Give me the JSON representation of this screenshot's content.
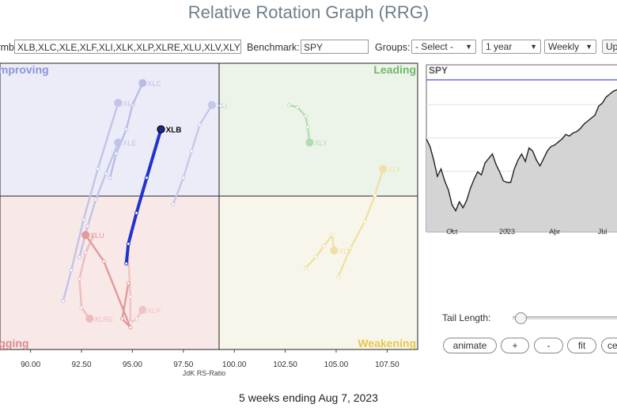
{
  "page": {
    "title": "Relative Rotation Graph (RRG)",
    "footer": "5 weeks ending Aug 7, 2023"
  },
  "toolbar": {
    "symbols_label": "Symbols:",
    "symbols_value": "XLB,XLC,XLE,XLF,XLI,XLK,XLP,XLRE,XLU,XLV,XLY",
    "benchmark_label": "Benchmark:",
    "benchmark_value": "SPY",
    "groups_label": "Groups:",
    "groups_value": "- Select -",
    "period_value": "1 year",
    "frequency_value": "Weekly",
    "update_label": "Update"
  },
  "controls": {
    "tail_length_label": "Tail Length:",
    "tail_length_value": 5,
    "buttons": [
      "animate",
      "+",
      "-",
      "fit",
      "center"
    ]
  },
  "colors": {
    "improving_bg": "#ececf8",
    "leading_bg": "#ecf4ea",
    "lagging_bg": "#f8e8e8",
    "weakening_bg": "#f8f6ea",
    "improving_text": "#8a95d6",
    "leading_text": "#72b86a",
    "lagging_text": "#e08a8a",
    "weakening_text": "#e6c84a",
    "highlight_tail": "#2233cc",
    "benchmark_line": "#4455cc"
  },
  "chart_data": [
    {
      "type": "scatter",
      "title": "",
      "xlabel": "JdK RS-Ratio",
      "ylabel": "",
      "xlim": [
        88.5,
        109
      ],
      "ylim": [
        93.4,
        106.4
      ],
      "xticks": [
        "90.00",
        "92.50",
        "95.00",
        "97.50",
        "100.00",
        "102.50",
        "105.00",
        "107.50"
      ],
      "quadrants": {
        "improving": "Improving",
        "leading": "Leading",
        "lagging": "Lagging",
        "weakening": "Weakening"
      },
      "highlighted": "XLB",
      "series": [
        {
          "name": "XLB",
          "color": "#2233cc",
          "points": [
            [
              94.7,
              97.3
            ],
            [
              94.8,
              98.2
            ],
            [
              95.2,
              99.6
            ],
            [
              95.7,
              101.2
            ],
            [
              96.4,
              103.4
            ]
          ]
        },
        {
          "name": "XLC",
          "color": "#b8bde8",
          "points": [
            [
              93.9,
              101.2
            ],
            [
              94.2,
              102.3
            ],
            [
              94.7,
              103.4
            ],
            [
              95.0,
              104.5
            ],
            [
              95.5,
              105.5
            ]
          ]
        },
        {
          "name": "XLE",
          "color": "#c0c4e8",
          "points": [
            [
              92.4,
              97.6
            ],
            [
              92.8,
              99.0
            ],
            [
              93.2,
              100.2
            ],
            [
              93.7,
              101.4
            ],
            [
              94.3,
              102.8
            ]
          ]
        },
        {
          "name": "XLF",
          "color": "#c0c4e8",
          "points": [
            [
              91.6,
              95.6
            ],
            [
              92.0,
              97.0
            ],
            [
              92.6,
              99.3
            ],
            [
              93.3,
              101.6
            ],
            [
              94.3,
              104.6
            ]
          ]
        },
        {
          "name": "XLI",
          "color": "#c4c8ea",
          "points": [
            [
              97.0,
              100.0
            ],
            [
              97.5,
              101.2
            ],
            [
              97.9,
              102.4
            ],
            [
              98.3,
              103.6
            ],
            [
              98.9,
              104.5
            ]
          ]
        },
        {
          "name": "XLK",
          "color": "#f0e0a8",
          "points": [
            [
              105.1,
              96.7
            ],
            [
              105.7,
              98.0
            ],
            [
              106.4,
              99.2
            ],
            [
              106.9,
              100.4
            ],
            [
              107.3,
              101.6
            ]
          ]
        },
        {
          "name": "XLP",
          "color": "#f0c4c4",
          "points": [
            [
              94.8,
              97.6
            ],
            [
              94.9,
              95.8
            ],
            [
              94.9,
              94.6
            ],
            [
              95.2,
              94.8
            ],
            [
              95.5,
              95.2
            ]
          ]
        },
        {
          "name": "XLRE",
          "color": "#eebcbc",
          "points": [
            [
              93.1,
              98.6
            ],
            [
              92.7,
              97.8
            ],
            [
              92.4,
              96.6
            ],
            [
              92.5,
              95.3
            ],
            [
              92.9,
              94.8
            ]
          ]
        },
        {
          "name": "XLU",
          "color": "#e29a9a",
          "points": [
            [
              94.8,
              96.4
            ],
            [
              94.5,
              94.8
            ],
            [
              94.9,
              94.4
            ],
            [
              93.6,
              97.4
            ],
            [
              92.7,
              98.6
            ]
          ]
        },
        {
          "name": "XLV",
          "color": "#f0e0a8",
          "points": [
            [
              103.5,
              97.1
            ],
            [
              104.0,
              97.6
            ],
            [
              104.4,
              98.1
            ],
            [
              104.8,
              98.6
            ],
            [
              104.9,
              97.9
            ]
          ]
        },
        {
          "name": "XLY",
          "color": "#b4dcb0",
          "points": [
            [
              102.7,
              104.5
            ],
            [
              103.1,
              104.4
            ],
            [
              103.5,
              104.0
            ],
            [
              103.6,
              103.5
            ],
            [
              103.7,
              102.8
            ]
          ]
        }
      ]
    },
    {
      "type": "area",
      "title": "",
      "series_label": "SPY",
      "xticks": [
        "Oct",
        "2023",
        "Apr",
        "Jul"
      ],
      "xtick_index": [
        7,
        22,
        35,
        48
      ],
      "y_norm": [
        0.38,
        0.43,
        0.52,
        0.63,
        0.58,
        0.66,
        0.72,
        0.82,
        0.86,
        0.8,
        0.84,
        0.79,
        0.71,
        0.65,
        0.6,
        0.62,
        0.54,
        0.51,
        0.48,
        0.55,
        0.6,
        0.66,
        0.67,
        0.67,
        0.58,
        0.52,
        0.48,
        0.53,
        0.44,
        0.46,
        0.52,
        0.56,
        0.51,
        0.46,
        0.43,
        0.42,
        0.4,
        0.38,
        0.35,
        0.36,
        0.34,
        0.33,
        0.31,
        0.28,
        0.26,
        0.24,
        0.22,
        0.16,
        0.14,
        0.1,
        0.08,
        0.06,
        0.05
      ],
      "benchmark_ref": 0.0
    }
  ]
}
